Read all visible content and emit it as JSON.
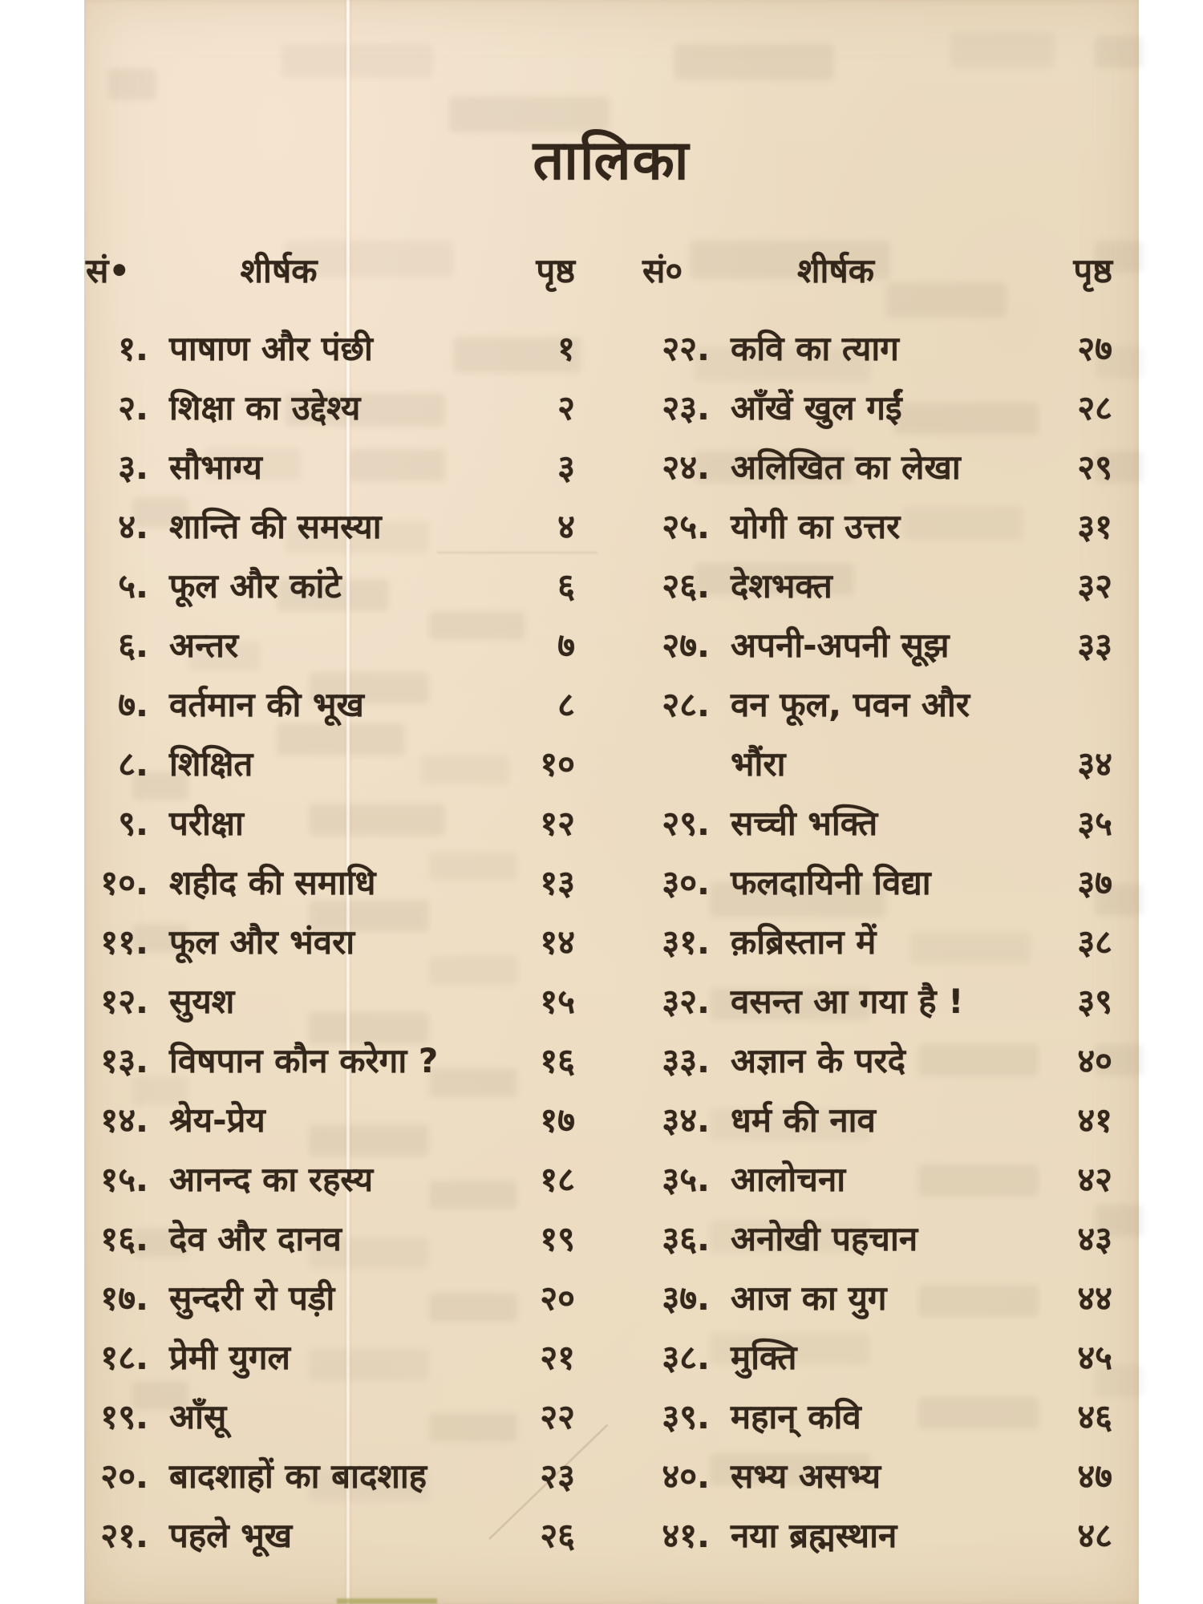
{
  "page_title": "तालिका",
  "colors": {
    "ink": "#33271b",
    "paper": "#ecdcc2"
  },
  "columns": {
    "left": {
      "header": {
        "serial": "सं•",
        "title": "शीर्षक",
        "page": "पृष्ठ"
      },
      "entries": [
        {
          "serial": "१.",
          "title": "पाषाण और पंछी",
          "page": "१"
        },
        {
          "serial": "२.",
          "title": "शिक्षा का उद्देश्य",
          "page": "२"
        },
        {
          "serial": "३.",
          "title": "सौभाग्य",
          "page": "३"
        },
        {
          "serial": "४.",
          "title": "शान्ति की समस्या",
          "page": "४"
        },
        {
          "serial": "५.",
          "title": "फूल और कांटे",
          "page": "६"
        },
        {
          "serial": "६.",
          "title": "अन्तर",
          "page": "७"
        },
        {
          "serial": "७.",
          "title": "वर्तमान की भूख",
          "page": "८"
        },
        {
          "serial": "८.",
          "title": "शिक्षित",
          "page": "१०"
        },
        {
          "serial": "९.",
          "title": "परीक्षा",
          "page": "१२"
        },
        {
          "serial": "१०.",
          "title": "शहीद की समाधि",
          "page": "१३"
        },
        {
          "serial": "११.",
          "title": "फूल और भंवरा",
          "page": "१४"
        },
        {
          "serial": "१२.",
          "title": "सुयश",
          "page": "१५"
        },
        {
          "serial": "१३.",
          "title": "विषपान कौन करेगा ?",
          "page": "१६"
        },
        {
          "serial": "१४.",
          "title": "श्रेय-प्रेय",
          "page": "१७"
        },
        {
          "serial": "१५.",
          "title": "आनन्द का रहस्य",
          "page": "१८"
        },
        {
          "serial": "१६.",
          "title": "देव और दानव",
          "page": "१९"
        },
        {
          "serial": "१७.",
          "title": "सुन्दरी रो पड़ी",
          "page": "२०"
        },
        {
          "serial": "१८.",
          "title": "प्रेमी युगल",
          "page": "२१"
        },
        {
          "serial": "१९.",
          "title": "आँसू",
          "page": "२२"
        },
        {
          "serial": "२०.",
          "title": "बादशाहों का बादशाह",
          "page": "२३"
        },
        {
          "serial": "२१.",
          "title": "पहले भूख",
          "page": "२६"
        }
      ]
    },
    "right": {
      "header": {
        "serial": "सं०",
        "title": "शीर्षक",
        "page": "पृष्ठ"
      },
      "entries": [
        {
          "serial": "२२.",
          "title": "कवि का त्याग",
          "page": "२७"
        },
        {
          "serial": "२३.",
          "title": "आँखें खुल गईं",
          "page": "२८"
        },
        {
          "serial": "२४.",
          "title": "अलिखित का लेखा",
          "page": "२९"
        },
        {
          "serial": "२५.",
          "title": "योगी का उत्तर",
          "page": "३१"
        },
        {
          "serial": "२६.",
          "title": "देशभक्त",
          "page": "३२"
        },
        {
          "serial": "२७.",
          "title": "अपनी-अपनी सूझ",
          "page": "३३"
        },
        {
          "serial": "२८.",
          "title": "वन फूल, पवन और",
          "title2": "भौंरा",
          "page": "३४"
        },
        {
          "serial": "२९.",
          "title": "सच्ची भक्ति",
          "page": "३५"
        },
        {
          "serial": "३०.",
          "title": "फलदायिनी विद्या",
          "page": "३७"
        },
        {
          "serial": "३१.",
          "title": "क़ब्रिस्तान में",
          "page": "३८"
        },
        {
          "serial": "३२.",
          "title": "वसन्त आ गया है !",
          "page": "३९"
        },
        {
          "serial": "३३.",
          "title": "अज्ञान के परदे",
          "page": "४०"
        },
        {
          "serial": "३४.",
          "title": "धर्म की नाव",
          "page": "४१"
        },
        {
          "serial": "३५.",
          "title": "आलोचना",
          "page": "४२"
        },
        {
          "serial": "३६.",
          "title": "अनोखी पहचान",
          "page": "४३"
        },
        {
          "serial": "३७.",
          "title": "आज का युग",
          "page": "४४"
        },
        {
          "serial": "३८.",
          "title": "मुक्ति",
          "page": "४५"
        },
        {
          "serial": "३९.",
          "title": "महान् कवि",
          "page": "४६"
        },
        {
          "serial": "४०.",
          "title": "सभ्य असभ्य",
          "page": "४७"
        },
        {
          "serial": "४१.",
          "title": "नया ब्रह्मस्थान",
          "page": "४८"
        }
      ]
    }
  }
}
